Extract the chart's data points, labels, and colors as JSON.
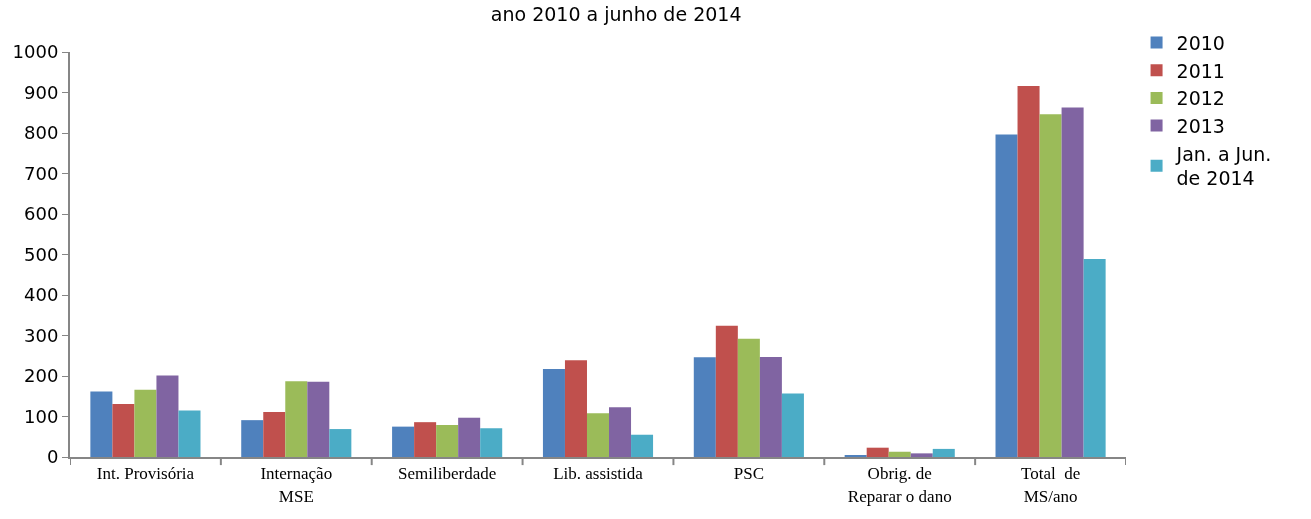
{
  "chart_data": {
    "type": "bar",
    "title": "ano 2010 a junho de 2014",
    "categories": [
      "Int. Provisória",
      "Internação\nMSE",
      "Semiliberdade",
      "Lib. assistida",
      "PSC",
      "Obrig. de\nReparar o dano",
      "Total  de\nMS/ano"
    ],
    "series": [
      {
        "name": "2010",
        "color": "#4f81bd",
        "values": [
          162,
          91,
          75,
          217,
          246,
          3,
          796
        ]
      },
      {
        "name": "2011",
        "color": "#c0504d",
        "values": [
          131,
          111,
          86,
          239,
          324,
          23,
          916
        ]
      },
      {
        "name": "2012",
        "color": "#9bbb59",
        "values": [
          166,
          187,
          79,
          108,
          292,
          13,
          846
        ]
      },
      {
        "name": "2013",
        "color": "#8064a2",
        "values": [
          201,
          186,
          97,
          123,
          247,
          9,
          863
        ]
      },
      {
        "name": "Jan. a Jun.\nde 2014",
        "color": "#4bacc6",
        "values": [
          115,
          69,
          71,
          55,
          157,
          20,
          489
        ]
      }
    ],
    "ylim": [
      0,
      1000
    ],
    "yticks": [
      0,
      100,
      200,
      300,
      400,
      500,
      600,
      700,
      800,
      900,
      1000
    ],
    "grid": false,
    "legend": "right"
  }
}
